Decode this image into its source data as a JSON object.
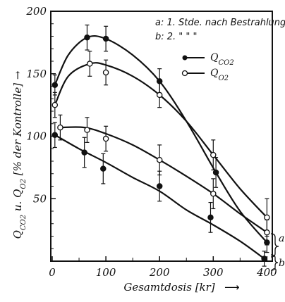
{
  "chart_data": {
    "type": "line",
    "ylabel": "Q_CO2 u. Q_O2 [% der Kontrolle]",
    "xlabel": "Gesamtdosis [kr]",
    "xlim": [
      0,
      410
    ],
    "ylim": [
      0,
      200
    ],
    "x_ticks": [
      "0",
      "100",
      "200",
      "300",
      "400"
    ],
    "y_ticks": [
      "50",
      "100",
      "150",
      "200"
    ],
    "annotation_a": "a: 1. Stde. nach Bestrahlung",
    "annotation_b": "b: 2.    \"          \"                  \"",
    "series": [
      {
        "name": "Q_CO2",
        "marker": "filled",
        "group": "a",
        "points": [
          {
            "x": 5,
            "y": 141,
            "err": 8
          },
          {
            "x": 65,
            "y": 179,
            "err": 10
          },
          {
            "x": 100,
            "y": 178,
            "err": 10
          },
          {
            "x": 200,
            "y": 144,
            "err": 10
          },
          {
            "x": 305,
            "y": 71,
            "err": 12
          },
          {
            "x": 400,
            "y": 15,
            "err": 8
          }
        ],
        "curve": [
          [
            5,
            141
          ],
          [
            30,
            165
          ],
          [
            65,
            179
          ],
          [
            100,
            178
          ],
          [
            150,
            165
          ],
          [
            200,
            144
          ],
          [
            250,
            112
          ],
          [
            305,
            71
          ],
          [
            350,
            40
          ],
          [
            400,
            15
          ]
        ]
      },
      {
        "name": "Q_O2",
        "marker": "open",
        "group": "a",
        "points": [
          {
            "x": 5,
            "y": 125,
            "err": 10
          },
          {
            "x": 70,
            "y": 158,
            "err": 10
          },
          {
            "x": 100,
            "y": 151,
            "err": 10
          },
          {
            "x": 200,
            "y": 133,
            "err": 10
          },
          {
            "x": 300,
            "y": 85,
            "err": 12
          },
          {
            "x": 400,
            "y": 35,
            "err": 15
          }
        ],
        "curve": [
          [
            5,
            125
          ],
          [
            30,
            148
          ],
          [
            70,
            158
          ],
          [
            100,
            157
          ],
          [
            150,
            148
          ],
          [
            200,
            133
          ],
          [
            250,
            112
          ],
          [
            300,
            85
          ],
          [
            350,
            58
          ],
          [
            400,
            35
          ]
        ]
      },
      {
        "name": "Q_O2",
        "marker": "open",
        "group": "b",
        "points": [
          {
            "x": 15,
            "y": 107,
            "err": 10
          },
          {
            "x": 65,
            "y": 105,
            "err": 10
          },
          {
            "x": 100,
            "y": 98,
            "err": 10
          },
          {
            "x": 200,
            "y": 81,
            "err": 12
          },
          {
            "x": 300,
            "y": 54,
            "err": 12
          },
          {
            "x": 400,
            "y": 23,
            "err": 10
          }
        ],
        "curve": [
          [
            15,
            107
          ],
          [
            60,
            107
          ],
          [
            100,
            102
          ],
          [
            150,
            93
          ],
          [
            200,
            81
          ],
          [
            250,
            68
          ],
          [
            300,
            54
          ],
          [
            350,
            38
          ],
          [
            400,
            23
          ]
        ]
      },
      {
        "name": "Q_CO2",
        "marker": "filled",
        "group": "b",
        "points": [
          {
            "x": 5,
            "y": 101,
            "err": 10
          },
          {
            "x": 60,
            "y": 87,
            "err": 12
          },
          {
            "x": 95,
            "y": 74,
            "err": 12
          },
          {
            "x": 200,
            "y": 60,
            "err": 12
          },
          {
            "x": 295,
            "y": 35,
            "err": 12
          },
          {
            "x": 395,
            "y": 2,
            "err": 6
          }
        ],
        "curve": [
          [
            5,
            101
          ],
          [
            50,
            90
          ],
          [
            100,
            79
          ],
          [
            150,
            67
          ],
          [
            200,
            56
          ],
          [
            250,
            41
          ],
          [
            300,
            29
          ],
          [
            350,
            16
          ],
          [
            395,
            2
          ]
        ]
      }
    ],
    "legend": [
      {
        "marker": "filled",
        "label": "Q_CO2"
      },
      {
        "marker": "open",
        "label": "Q_O2"
      }
    ],
    "group_labels": [
      "a",
      "b"
    ]
  }
}
